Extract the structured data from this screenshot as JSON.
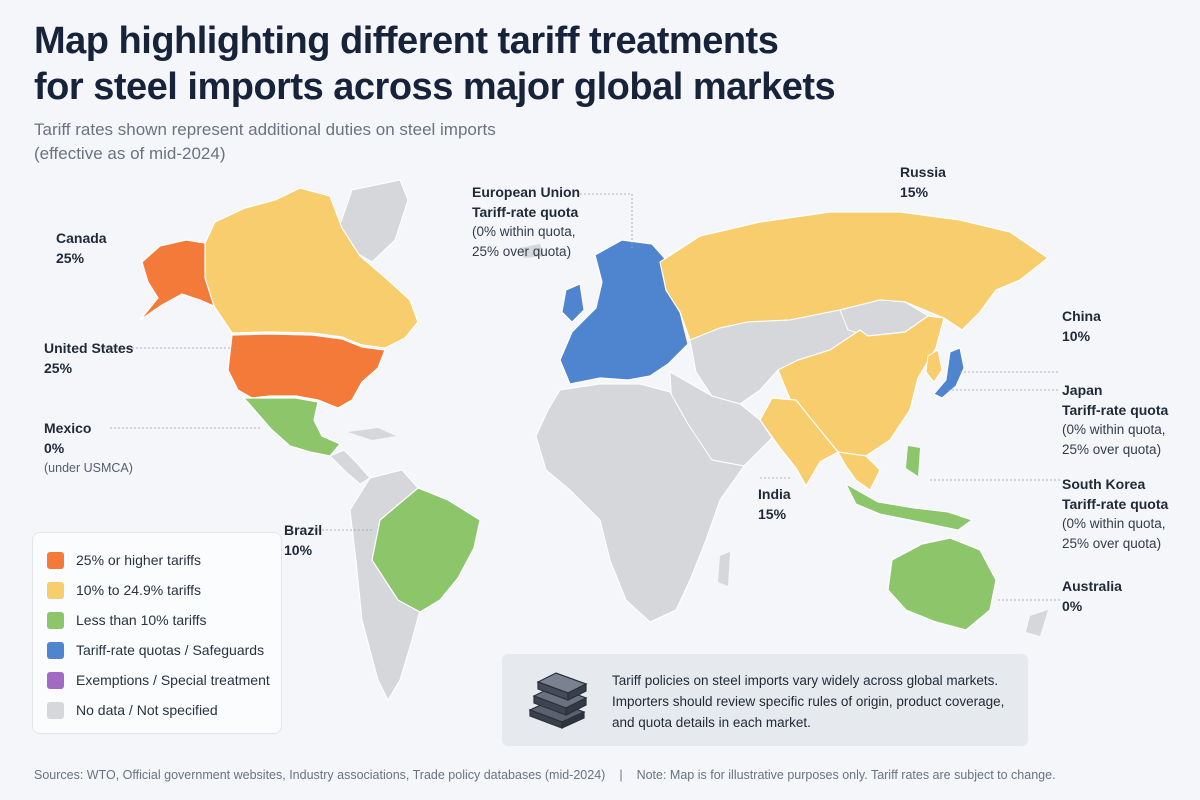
{
  "header": {
    "title_line1": "Map highlighting different tariff treatments",
    "title_line2": "for steel imports across major global markets",
    "subtitle_line1": "Tariff rates shown represent additional duties on steel imports",
    "subtitle_line2": "(effective as of mid-2024)"
  },
  "colors": {
    "high": "#f47a3a",
    "mid": "#f8cd6e",
    "low": "#8cc56a",
    "quota": "#4f84cf",
    "exempt": "#a36ac4",
    "nodata": "#d5d7da",
    "background": "#f4f6f9"
  },
  "labels": {
    "canada": {
      "name": "Canada",
      "rate": "25%"
    },
    "united_states": {
      "name": "United States",
      "rate": "25%"
    },
    "mexico": {
      "name": "Mexico",
      "rate": "0%",
      "note": "(under USMCA)"
    },
    "brazil": {
      "name": "Brazil",
      "rate": "10%"
    },
    "eu": {
      "name": "European Union",
      "rate": "Tariff-rate quota",
      "detail1": "(0% within quota,",
      "detail2": "25% over quota)"
    },
    "russia": {
      "name": "Russia",
      "rate": "15%"
    },
    "china": {
      "name": "China",
      "rate": "10%"
    },
    "japan": {
      "name": "Japan",
      "rate": "Tariff-rate quota",
      "detail1": "(0% within quota,",
      "detail2": "25% over quota)"
    },
    "india": {
      "name": "India",
      "rate": "15%"
    },
    "south_korea": {
      "name": "South Korea",
      "rate": "Tariff-rate quota",
      "detail1": "(0% within quota,",
      "detail2": "25% over quota)"
    },
    "australia": {
      "name": "Australia",
      "rate": "0%"
    }
  },
  "legend": {
    "items": [
      {
        "label": "25% or higher tariffs",
        "color": "#f47a3a"
      },
      {
        "label": "10% to 24.9% tariffs",
        "color": "#f8cd6e"
      },
      {
        "label": "Less than 10% tariffs",
        "color": "#8cc56a"
      },
      {
        "label": "Tariff-rate quotas / Safeguards",
        "color": "#4f84cf"
      },
      {
        "label": "Exemptions / Special treatment",
        "color": "#a36ac4"
      },
      {
        "label": "No data / Not specified",
        "color": "#d5d7da"
      }
    ]
  },
  "infobox": {
    "icon": "steel-beams-icon",
    "line1": "Tariff policies on steel imports vary widely across global markets.",
    "line2": "Importers should review specific rules of origin, product coverage,",
    "line3": "and quota details in each market."
  },
  "footer": {
    "sources": "Sources: WTO, Official government websites, Industry associations, Trade policy databases (mid-2024)",
    "separator": "|",
    "note": "Note: Map is for illustrative purposes only. Tariff rates are subject to change."
  }
}
